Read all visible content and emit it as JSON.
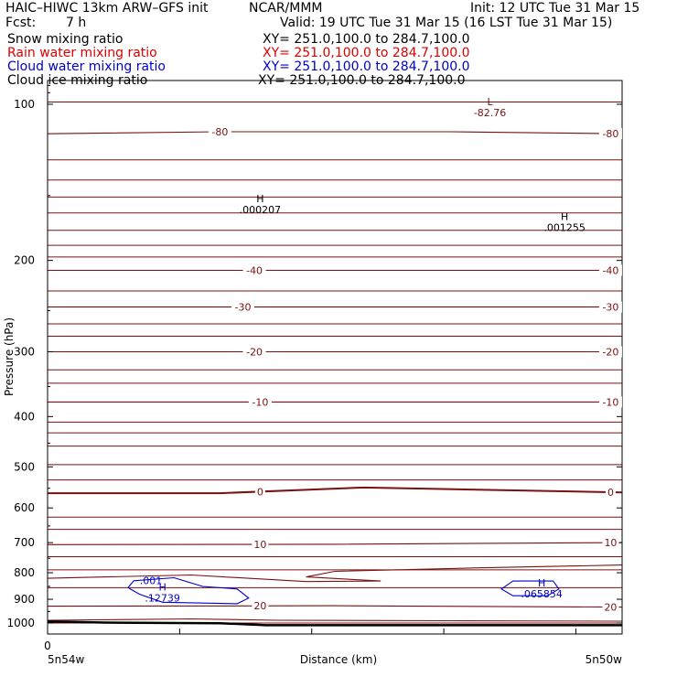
{
  "header": {
    "title": "HAIC–HIWC 13km ARW–GFS init",
    "org": "NCAR/MMM",
    "init": "Init: 12 UTC Tue 31 Mar 15",
    "fcst_label": "Fcst:",
    "fcst_value": "7 h",
    "valid": "Valid: 19 UTC Tue 31 Mar 15 (16 LST Tue 31 Mar 15)"
  },
  "fields": [
    {
      "name": "Snow mixing ratio",
      "xy": "XY= 251.0,100.0 to 284.7,100.0",
      "color": "#000000"
    },
    {
      "name": "Rain water mixing ratio",
      "xy": "XY= 251.0,100.0 to 284.7,100.0",
      "color": "#dd0000"
    },
    {
      "name": "Cloud water mixing ratio",
      "xy": "XY= 251.0,100.0 to 284.7,100.0",
      "color": "#0000cc"
    },
    {
      "name": "Cloud ice mixing ratio",
      "xy": "XY= 251.0,100.0 to 284.7,100.0",
      "color": "#000000"
    }
  ],
  "colors": {
    "temperature": "#7a1010",
    "cloud_water": "#0000cc",
    "ice": "#000000",
    "terrain": "#000000"
  },
  "chart_data": {
    "type": "contour",
    "ylabel": "Pressure (hPa)",
    "xlabel": "Distance (km)",
    "y_axis": {
      "scale": "log",
      "min": 1050,
      "max": 90,
      "ticks": [
        100,
        200,
        300,
        400,
        500,
        600,
        700,
        800,
        900,
        1000
      ]
    },
    "x_axis": {
      "min": 0,
      "max": 1,
      "ticks": [
        "0"
      ],
      "left_label": "5n54w",
      "right_label": "5n50w"
    },
    "temperature_contours": [
      {
        "label": "-80",
        "p": [
          [
            0,
            114
          ],
          [
            0.3,
            113
          ],
          [
            0.7,
            113
          ],
          [
            1,
            114
          ]
        ],
        "labels_at": [
          0.3,
          0.98
        ]
      },
      {
        "label": "-40",
        "p": [
          [
            0,
            209
          ],
          [
            0.5,
            209
          ],
          [
            1,
            209
          ]
        ],
        "labels_at": [
          0.36,
          0.98
        ]
      },
      {
        "label": "-30",
        "p": [
          [
            0,
            246
          ],
          [
            0.5,
            246
          ],
          [
            1,
            246
          ]
        ],
        "labels_at": [
          0.34,
          0.98
        ]
      },
      {
        "label": "-20",
        "p": [
          [
            0,
            300
          ],
          [
            0.5,
            300
          ],
          [
            1,
            300
          ]
        ],
        "labels_at": [
          0.36,
          0.98
        ]
      },
      {
        "label": "-10",
        "p": [
          [
            0,
            375
          ],
          [
            0.5,
            375
          ],
          [
            1,
            375
          ]
        ],
        "labels_at": [
          0.37,
          0.98
        ]
      },
      {
        "label": "0",
        "p": [
          [
            0,
            562
          ],
          [
            0.3,
            562
          ],
          [
            0.55,
            548
          ],
          [
            1,
            560
          ]
        ],
        "labels_at": [
          0.37,
          0.98
        ]
      },
      {
        "label": "10",
        "p": [
          [
            0,
            706
          ],
          [
            0.5,
            705
          ],
          [
            1,
            700
          ]
        ],
        "labels_at": [
          0.37,
          0.98
        ]
      },
      {
        "label": "20",
        "p": [
          [
            0,
            928
          ],
          [
            0.5,
            926
          ],
          [
            1,
            932
          ]
        ],
        "labels_at": [
          0.37,
          0.98
        ]
      }
    ],
    "extremum_labels": [
      {
        "type": "L",
        "value": "-82.76",
        "x": 0.77,
        "p": 102,
        "color_key": "temperature"
      },
      {
        "type": "H",
        "value": ".000207",
        "x": 0.37,
        "p": 157,
        "color_key": "ice"
      },
      {
        "type": "H",
        "value": ".001255",
        "x": 0.9,
        "p": 170,
        "color_key": "ice"
      },
      {
        "type": "H",
        "value": ".12739",
        "x": 0.2,
        "p": 880,
        "color_key": "cloud_water"
      },
      {
        "type": "H",
        "value": ".065854",
        "x": 0.86,
        "p": 864,
        "color_key": "cloud_water"
      }
    ],
    "cloud_water_contours": [
      {
        "label": ".001",
        "p": [
          [
            0.15,
            829
          ],
          [
            0.22,
            818
          ],
          [
            0.27,
            850
          ],
          [
            0.33,
            860
          ],
          [
            0.35,
            895
          ],
          [
            0.33,
            918
          ],
          [
            0.2,
            912
          ],
          [
            0.16,
            880
          ],
          [
            0.14,
            855
          ]
        ],
        "label_at": [
          0.18,
          828
        ]
      },
      {
        "label": "",
        "p": [
          [
            0.81,
            830
          ],
          [
            0.88,
            830
          ],
          [
            0.89,
            860
          ],
          [
            0.87,
            886
          ],
          [
            0.81,
            886
          ],
          [
            0.79,
            860
          ]
        ]
      }
    ],
    "terrain_p": [
      [
        0,
        993
      ],
      [
        0.1,
        998
      ],
      [
        0.3,
        1001
      ],
      [
        0.38,
        1010
      ],
      [
        0.6,
        1010
      ],
      [
        1,
        1010
      ]
    ]
  }
}
